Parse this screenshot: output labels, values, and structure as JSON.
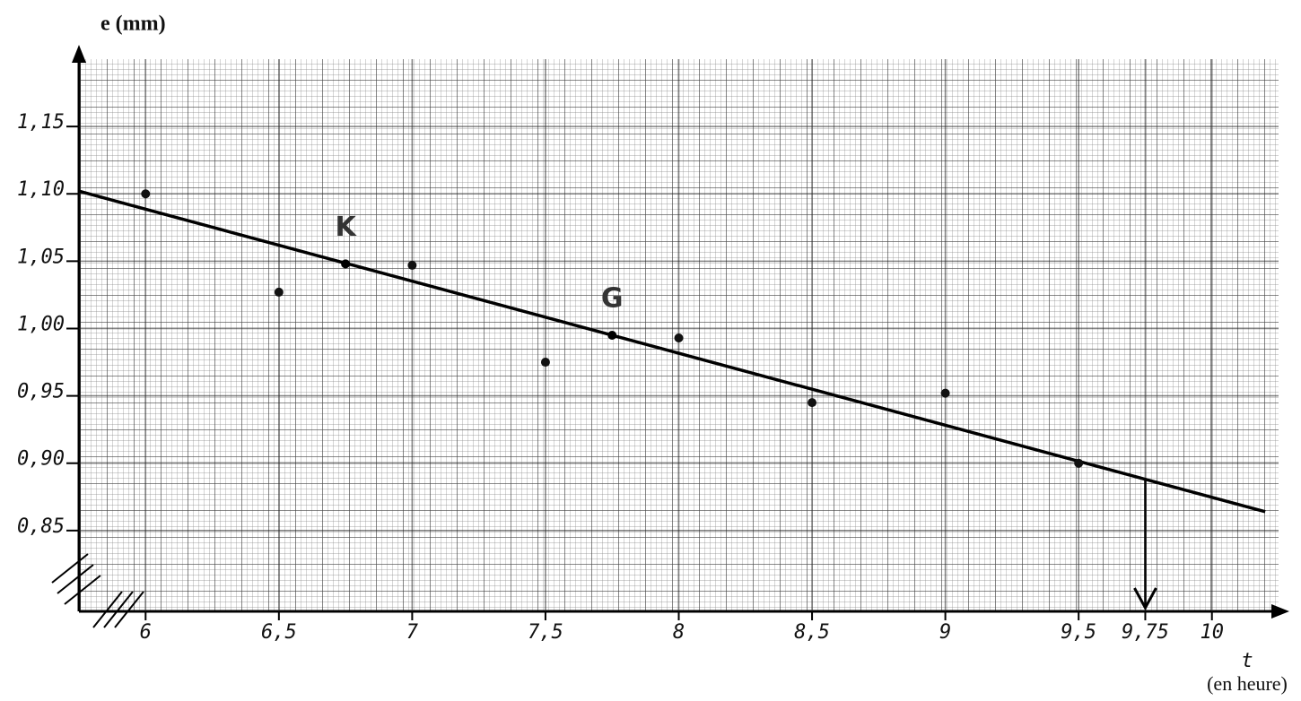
{
  "chart_data": {
    "type": "scatter",
    "title": "e (mm)",
    "x_label": "t",
    "x_unit_label": "(en heure)",
    "xlim": [
      5.75,
      10.25
    ],
    "ylim": [
      0.79,
      1.2
    ],
    "xticks": [
      6,
      {
        "value": 6.5,
        "label": "6,5"
      },
      7,
      {
        "value": 7.5,
        "label": "7,5"
      },
      8,
      {
        "value": 8.5,
        "label": "8,5"
      },
      9,
      {
        "value": 9.5,
        "label": "9,5"
      },
      {
        "value": 9.75,
        "label": "9,75"
      },
      10
    ],
    "yticks": [
      {
        "value": 0.85,
        "label": "0,85"
      },
      {
        "value": 0.9,
        "label": "0,90"
      },
      {
        "value": 0.95,
        "label": "0,95"
      },
      {
        "value": 1.0,
        "label": "1,00"
      },
      {
        "value": 1.05,
        "label": "1,05"
      },
      {
        "value": 1.1,
        "label": "1,10"
      },
      {
        "value": 1.15,
        "label": "1,15"
      }
    ],
    "grid": true,
    "color": "#111111",
    "x": [
      6,
      6.5,
      7,
      7.5,
      8,
      8.5,
      9,
      9.5
    ],
    "values": [
      1.1,
      1.027,
      1.047,
      0.975,
      0.993,
      0.945,
      0.952,
      0.9
    ],
    "fit_line": {
      "x": [
        5.75,
        10.2
      ],
      "values": [
        1.102,
        0.864
      ],
      "color": "#000000"
    },
    "annotations": [
      {
        "text": "K",
        "x": 6.75,
        "y": 1.048
      },
      {
        "text": "G",
        "x": 7.75,
        "y": 0.995
      }
    ]
  }
}
